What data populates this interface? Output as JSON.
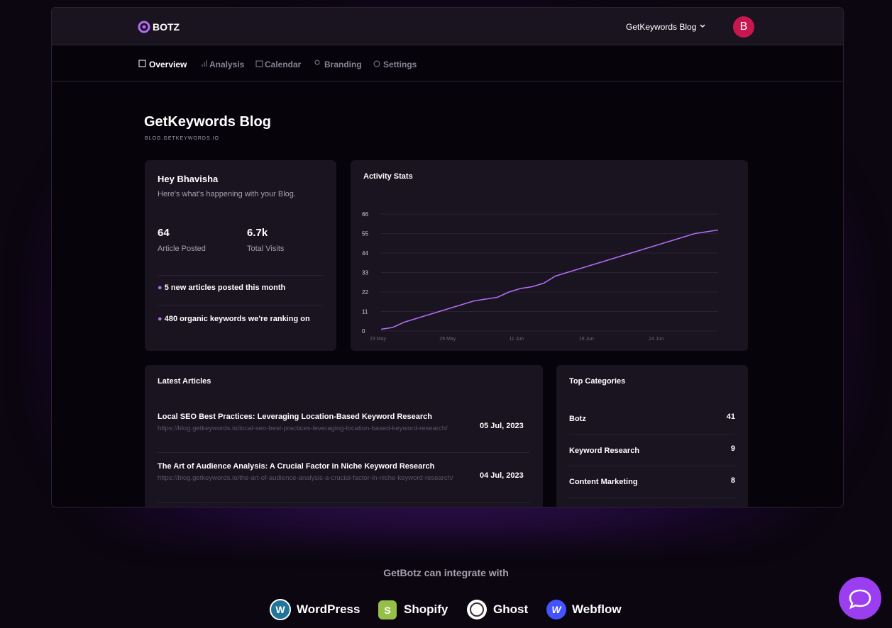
{
  "header": {
    "brand": "BOTZ",
    "blog_selector": "GetKeywords Blog",
    "avatar": "B"
  },
  "nav": [
    "Overview",
    "Analysis",
    "Calendar",
    "Branding",
    "Settings"
  ],
  "blog": {
    "title": "GetKeywords Blog",
    "url": "BLOG.GETKEYWORDS.IO"
  },
  "welcome": {
    "greeting": "Hey Bhavisha",
    "subtitle": "Here's what's happening with your Blog.",
    "stats": [
      {
        "value": "64",
        "label": "Article Posted"
      },
      {
        "value": "6.7k",
        "label": "Total Visits"
      }
    ],
    "notes": [
      "5 new articles posted this month",
      "480 organic keywords we're ranking on"
    ]
  },
  "chart_data": {
    "type": "line",
    "title": "Activity Stats",
    "categories": [
      "23 May",
      null,
      null,
      null,
      null,
      null,
      "29 May",
      null,
      null,
      null,
      null,
      null,
      "11 Jun",
      null,
      null,
      null,
      null,
      null,
      "18 Jun",
      null,
      null,
      null,
      null,
      null,
      "24 Jun",
      null,
      null,
      null,
      null,
      null
    ],
    "values": [
      1,
      2,
      5,
      7,
      9,
      11,
      13,
      15,
      17,
      18,
      19,
      22,
      24,
      25,
      27,
      31,
      33,
      35,
      37,
      39,
      41,
      43,
      45,
      47,
      49,
      51,
      53,
      55,
      56,
      57
    ],
    "color": "#b36cf5",
    "ylim": [
      0,
      66
    ],
    "yticks": [
      0,
      11,
      22,
      33,
      44,
      55,
      66
    ],
    "grid": true
  },
  "articles": {
    "title": "Latest Articles",
    "items": [
      {
        "title": "Local SEO Best Practices: Leveraging Location-Based Keyword Research",
        "url": "https://blog.getkeywords.io/local-seo-best-practices-leveraging-location-based-keyword-research/",
        "date": "05 Jul, 2023"
      },
      {
        "title": "The Art of Audience Analysis: A Crucial Factor in Niche Keyword Research",
        "url": "https://blog.getkeywords.io/the-art-of-audience-analysis-a-crucial-factor-in-niche-keyword-research/",
        "date": "04 Jul, 2023"
      }
    ]
  },
  "categories": {
    "title": "Top Categories",
    "items": [
      {
        "name": "Botz",
        "count": "41"
      },
      {
        "name": "Keyword Research",
        "count": "9"
      },
      {
        "name": "Content Marketing",
        "count": "8"
      }
    ]
  },
  "integrations": {
    "title": "GetBotz can integrate with",
    "items": [
      "WordPress",
      "Shopify",
      "Ghost",
      "Webflow"
    ]
  }
}
